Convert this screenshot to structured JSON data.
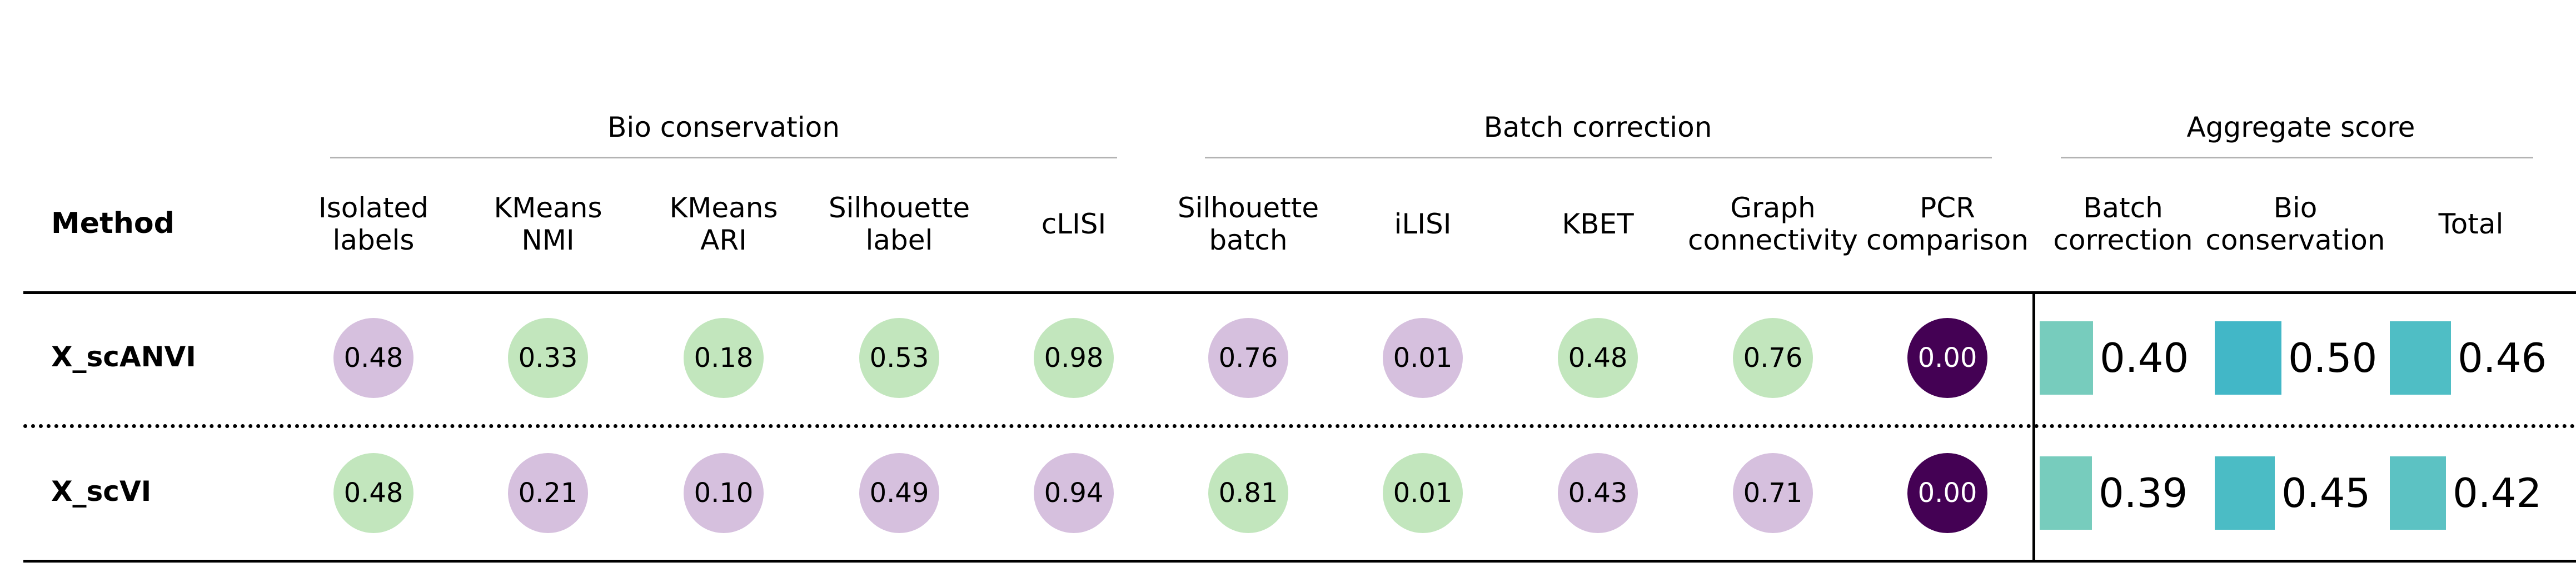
{
  "chart_data": {
    "type": "table",
    "method_header": "Method",
    "groups": [
      {
        "name": "Bio conservation",
        "columns": [
          "Isolated labels",
          "KMeans NMI",
          "KMeans ARI",
          "Silhouette label",
          "cLISI"
        ]
      },
      {
        "name": "Batch correction",
        "columns": [
          "Silhouette batch",
          "iLISI",
          "KBET",
          "Graph connectivity",
          "PCR comparison"
        ]
      },
      {
        "name": "Aggregate score",
        "columns": [
          "Batch correction",
          "Bio conservation",
          "Total"
        ]
      }
    ],
    "columns": [
      {
        "lines": [
          "Isolated",
          "labels"
        ],
        "kind": "circle"
      },
      {
        "lines": [
          "KMeans",
          "NMI"
        ],
        "kind": "circle"
      },
      {
        "lines": [
          "KMeans",
          "ARI"
        ],
        "kind": "circle"
      },
      {
        "lines": [
          "Silhouette",
          "label"
        ],
        "kind": "circle"
      },
      {
        "lines": [
          "cLISI"
        ],
        "kind": "circle"
      },
      {
        "lines": [
          "Silhouette",
          "batch"
        ],
        "kind": "circle"
      },
      {
        "lines": [
          "iLISI"
        ],
        "kind": "circle"
      },
      {
        "lines": [
          "KBET"
        ],
        "kind": "circle"
      },
      {
        "lines": [
          "Graph",
          "connectivity"
        ],
        "kind": "circle"
      },
      {
        "lines": [
          "PCR",
          "comparison"
        ],
        "kind": "circle"
      },
      {
        "lines": [
          "Batch",
          "correction"
        ],
        "kind": "bar"
      },
      {
        "lines": [
          "Bio",
          "conservation"
        ],
        "kind": "bar"
      },
      {
        "lines": [
          "Total"
        ],
        "kind": "bar"
      }
    ],
    "rows": [
      {
        "method": "X_scANVI",
        "values": [
          0.48,
          0.33,
          0.18,
          0.53,
          0.98,
          0.76,
          0.01,
          0.48,
          0.76,
          0.0,
          0.4,
          0.5,
          0.46
        ]
      },
      {
        "method": "X_scVI",
        "values": [
          0.48,
          0.21,
          0.1,
          0.49,
          0.94,
          0.81,
          0.01,
          0.43,
          0.71,
          0.0,
          0.39,
          0.45,
          0.42
        ]
      }
    ],
    "colors": {
      "best": "#c2e6bd",
      "other": "#d6c0de",
      "worst": "#440154",
      "bar_batch_correction": [
        "#77ccbd",
        "#77ccbd"
      ],
      "bar_bio_conservation": [
        "#42b7c7",
        "#4bbcc5"
      ],
      "bar_total": [
        "#4fbec5",
        "#5cc2c3"
      ]
    },
    "cell_colors": [
      [
        "other",
        "best",
        "best",
        "best",
        "best",
        "other",
        "other",
        "best",
        "best",
        "worst"
      ],
      [
        "best",
        "other",
        "other",
        "other",
        "other",
        "best",
        "best",
        "other",
        "other",
        "worst"
      ]
    ]
  }
}
